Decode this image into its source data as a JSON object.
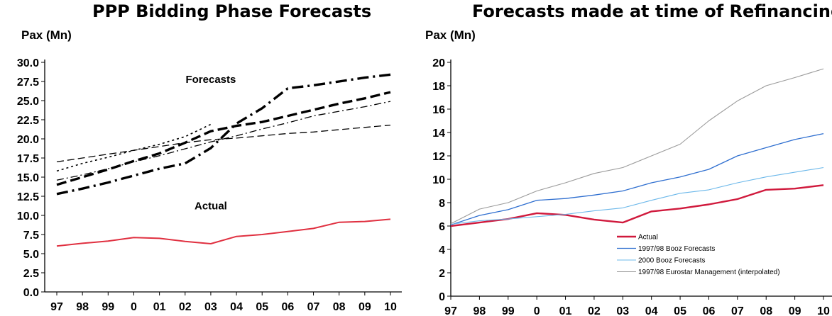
{
  "chart_data": [
    {
      "type": "line",
      "title": "PPP Bidding Phase Forecasts",
      "ylabel": "Pax (Mn)",
      "xlabel": "",
      "categories": [
        "97",
        "98",
        "99",
        "0",
        "01",
        "02",
        "03",
        "04",
        "05",
        "06",
        "07",
        "08",
        "09",
        "10"
      ],
      "yticks": [
        "0.0",
        "2.5",
        "5.0",
        "7.5",
        "10.0",
        "12.5",
        "15.0",
        "17.5",
        "20.0",
        "22.5",
        "25.0",
        "27.5",
        "30.0"
      ],
      "ylim": [
        0,
        30
      ],
      "grid": false,
      "annotations": [
        {
          "text": "Forecasts",
          "x": "03",
          "y": 27.3
        },
        {
          "text": "Actual",
          "x": "03",
          "y": 10.8
        }
      ],
      "series": [
        {
          "style": "actual",
          "color": "#e03040",
          "values": [
            6.0,
            6.35,
            6.65,
            7.1,
            7.0,
            6.6,
            6.3,
            7.25,
            7.5,
            7.9,
            8.3,
            9.1,
            9.2,
            9.5
          ]
        },
        {
          "style": "dashdot-bold",
          "color": "#000000",
          "values": [
            12.8,
            13.5,
            14.3,
            15.2,
            16.1,
            16.8,
            18.8,
            22.0,
            24.0,
            26.6,
            27.0,
            27.5,
            28.0,
            28.4
          ]
        },
        {
          "style": "dash-bold",
          "color": "#000000",
          "values": [
            14.0,
            15.0,
            16.0,
            17.1,
            18.1,
            19.5,
            21.0,
            21.7,
            22.2,
            23.0,
            23.8,
            24.6,
            25.3,
            26.1
          ]
        },
        {
          "style": "dash-thin",
          "color": "#000000",
          "values": [
            17.0,
            17.5,
            18.0,
            18.5,
            19.0,
            19.5,
            19.9,
            20.1,
            20.4,
            20.7,
            20.9,
            21.2,
            21.5,
            21.8
          ]
        },
        {
          "style": "dashdot-thin",
          "color": "#000000",
          "values": [
            14.6,
            15.3,
            16.1,
            17.0,
            17.8,
            18.7,
            19.6,
            20.4,
            21.3,
            22.1,
            23.0,
            23.6,
            24.2,
            24.9
          ]
        },
        {
          "style": "dot-thin",
          "color": "#000000",
          "values": [
            15.8,
            16.8,
            17.6,
            18.5,
            19.3,
            20.3,
            21.9,
            null,
            null,
            null,
            null,
            null,
            null,
            null
          ]
        }
      ]
    },
    {
      "type": "line",
      "title": "Forecasts made at time of Refinancing",
      "ylabel": "Pax (Mn)",
      "xlabel": "",
      "categories": [
        "97",
        "98",
        "99",
        "0",
        "01",
        "02",
        "03",
        "04",
        "05",
        "06",
        "07",
        "08",
        "09",
        "10"
      ],
      "yticks": [
        "0",
        "2",
        "4",
        "6",
        "8",
        "10",
        "12",
        "14",
        "16",
        "18",
        "20"
      ],
      "ylim": [
        0,
        20
      ],
      "grid": false,
      "legend": {
        "placement": "bottom-right"
      },
      "series": [
        {
          "name": "Actual",
          "color": "#d0193c",
          "width": 2.4,
          "values": [
            6.0,
            6.3,
            6.6,
            7.1,
            6.95,
            6.55,
            6.3,
            7.25,
            7.5,
            7.85,
            8.3,
            9.1,
            9.2,
            9.5
          ]
        },
        {
          "name": "1997/98 Booz Forecasts",
          "color": "#2f6fd0",
          "width": 1.3,
          "values": [
            6.1,
            6.9,
            7.4,
            8.2,
            8.35,
            8.65,
            9.0,
            9.7,
            10.2,
            10.85,
            12.0,
            12.7,
            13.4,
            13.9
          ]
        },
        {
          "name": "2000 Booz Forecasts",
          "color": "#6cb8ea",
          "width": 1.1,
          "values": [
            6.15,
            6.45,
            6.6,
            6.8,
            7.0,
            7.3,
            7.55,
            8.2,
            8.8,
            9.1,
            9.7,
            10.2,
            10.6,
            11.0
          ]
        },
        {
          "name": "1997/98 Eurostar Management (interpolated)",
          "color": "#9a9a9a",
          "width": 1.1,
          "values": [
            6.2,
            7.45,
            8.0,
            9.0,
            9.7,
            10.5,
            11.0,
            12.0,
            13.0,
            15.0,
            16.7,
            18.0,
            18.7,
            19.45
          ]
        }
      ]
    }
  ]
}
